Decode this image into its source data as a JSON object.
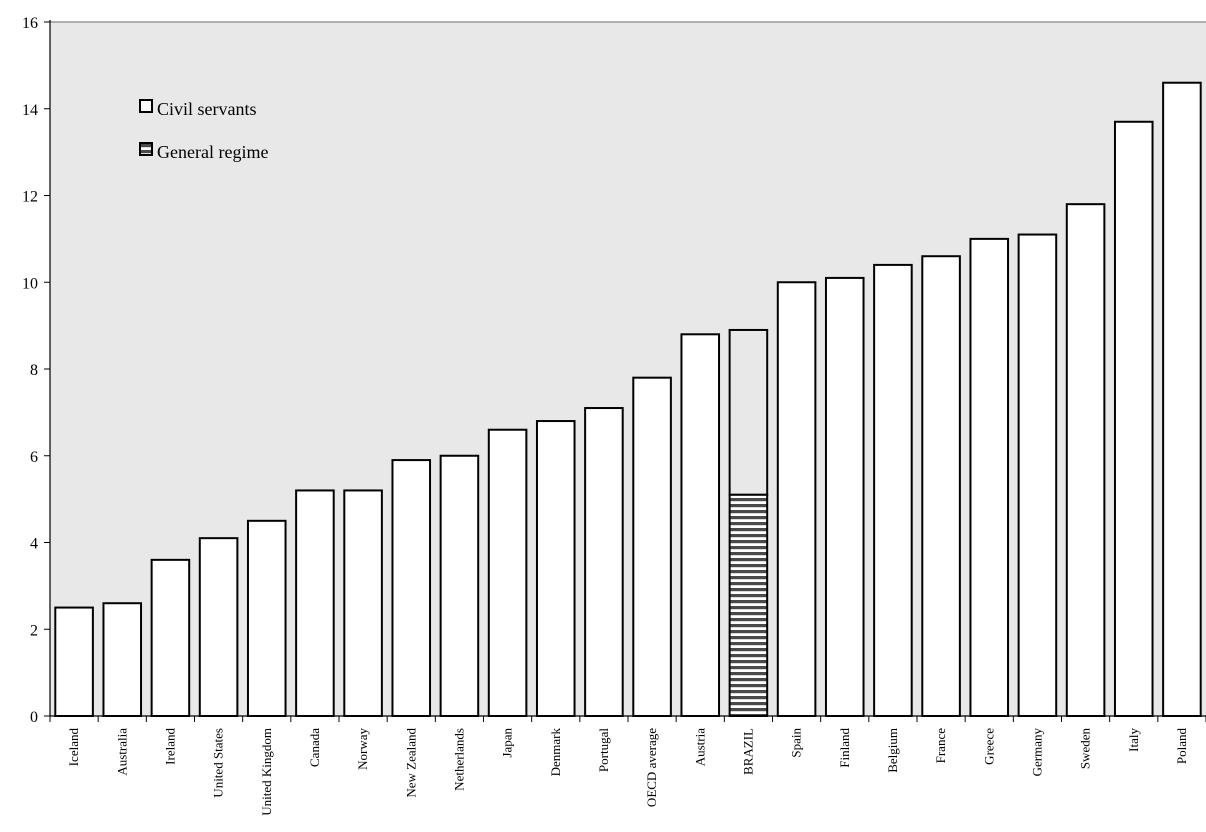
{
  "chart_data": {
    "type": "bar",
    "title": "",
    "xlabel": "",
    "ylabel": "",
    "ylim": [
      0,
      16
    ],
    "yticks": [
      0,
      2,
      4,
      6,
      8,
      10,
      12,
      14,
      16
    ],
    "grid": false,
    "legend_position": "top-left",
    "categories": [
      "Iceland",
      "Australia",
      "Ireland",
      "United States",
      "United Kingdom",
      "Canada",
      "Norway",
      "New Zealand",
      "Netherlands",
      "Japan",
      "Denmark",
      "Portugal",
      "OECD average",
      "Austria",
      "BRAZIL",
      "Spain",
      "Finland",
      "Belgium",
      "France",
      "Greece",
      "Germany",
      "Sweden",
      "Italy",
      "Poland"
    ],
    "series": [
      {
        "name": "Civil servants",
        "color": "#ffffff",
        "values": [
          2.5,
          2.6,
          3.6,
          4.1,
          4.5,
          5.2,
          5.2,
          5.9,
          6.0,
          6.6,
          6.8,
          7.1,
          7.8,
          8.8,
          8.9,
          10.0,
          10.1,
          10.4,
          10.6,
          11.0,
          11.1,
          11.8,
          13.7,
          14.6
        ]
      },
      {
        "name": "General regime",
        "color": "#555555",
        "values": [
          null,
          null,
          null,
          null,
          null,
          null,
          null,
          null,
          null,
          null,
          null,
          null,
          null,
          null,
          5.1,
          null,
          null,
          null,
          null,
          null,
          null,
          null,
          null,
          null
        ]
      }
    ]
  },
  "colors": {
    "plot_background": "#e8e8e8",
    "bar_outline": "#000000"
  }
}
